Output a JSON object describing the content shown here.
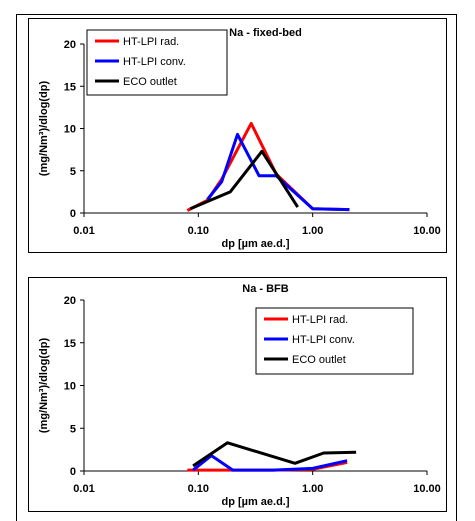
{
  "chart_data": [
    {
      "type": "line",
      "title": "Na  - fixed-bed",
      "xlabel": "dp [µm ae.d.]",
      "ylabel": "(mg/Nm³)/dlog(dp)",
      "xscale": "log",
      "xlim": [
        0.01,
        10
      ],
      "ylim": [
        0,
        20
      ],
      "xticks": [
        "0.01",
        "0.10",
        "1.00",
        "10.00"
      ],
      "yticks": [
        "0",
        "5",
        "10",
        "15",
        "20"
      ],
      "legend": "top-left",
      "series": [
        {
          "name": "HT-LPI rad.",
          "color": "#ff0000",
          "x": [
            0.08,
            0.12,
            0.16,
            0.29,
            0.48,
            1.0,
            2.1
          ],
          "y": [
            0.3,
            1.5,
            4.0,
            10.6,
            4.6,
            0.5,
            0.4
          ]
        },
        {
          "name": "HT-LPI conv.",
          "color": "#0000ff",
          "x": [
            0.12,
            0.16,
            0.22,
            0.34,
            0.48,
            1.0,
            2.1
          ],
          "y": [
            1.6,
            3.7,
            9.3,
            4.4,
            4.4,
            0.5,
            0.4
          ]
        },
        {
          "name": "ECO outlet",
          "color": "#000000",
          "x": [
            0.085,
            0.19,
            0.36,
            0.74
          ],
          "y": [
            0.5,
            2.5,
            7.3,
            0.7
          ]
        }
      ]
    },
    {
      "type": "line",
      "title": "Na  - BFB",
      "xlabel": "dp [µm ae.d.]",
      "ylabel": "(mg/Nm³)/dlog(dp)",
      "xscale": "log",
      "xlim": [
        0.01,
        10
      ],
      "ylim": [
        0,
        20
      ],
      "xticks": [
        "0.01",
        "0.10",
        "1.00",
        "10.00"
      ],
      "yticks": [
        "0",
        "5",
        "10",
        "15",
        "20"
      ],
      "legend": "top-right",
      "series": [
        {
          "name": "HT-LPI rad.",
          "color": "#ff0000",
          "x": [
            0.08,
            0.13,
            0.2,
            0.45,
            1.0,
            2.0
          ],
          "y": [
            0.1,
            0.1,
            0.1,
            0.1,
            0.2,
            1.0
          ]
        },
        {
          "name": "HT-LPI conv.",
          "color": "#0000ff",
          "x": [
            0.09,
            0.13,
            0.2,
            0.45,
            1.0,
            2.0
          ],
          "y": [
            0.1,
            1.8,
            0.1,
            0.1,
            0.3,
            1.2
          ]
        },
        {
          "name": "ECO outlet",
          "color": "#000000",
          "x": [
            0.09,
            0.18,
            0.7,
            1.25,
            2.4
          ],
          "y": [
            0.6,
            3.3,
            0.9,
            2.1,
            2.2
          ]
        }
      ]
    }
  ]
}
